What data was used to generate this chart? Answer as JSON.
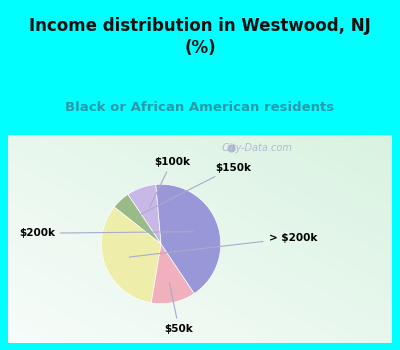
{
  "title": "Income distribution in Westwood, NJ\n(%)",
  "subtitle": "Black or African American residents",
  "title_color": "#111111",
  "subtitle_color": "#2a9aaa",
  "bg_color": "#00ffff",
  "chart_bg_color": "#e8f5ee",
  "slices": [
    {
      "label": "$100k",
      "value": 8.0,
      "color": "#c8b8e8"
    },
    {
      "label": "$150k",
      "value": 5.0,
      "color": "#9aba88"
    },
    {
      "label": "> $200k",
      "value": 33.0,
      "color": "#eeeeaa"
    },
    {
      "label": "$50k",
      "value": 12.0,
      "color": "#f0b0bc"
    },
    {
      "label": "$200k",
      "value": 42.0,
      "color": "#9898d8"
    }
  ],
  "watermark": "  City-Data.com",
  "watermark_color": "#aaaacc",
  "label_fontsize": 7.5,
  "startangle": 95
}
